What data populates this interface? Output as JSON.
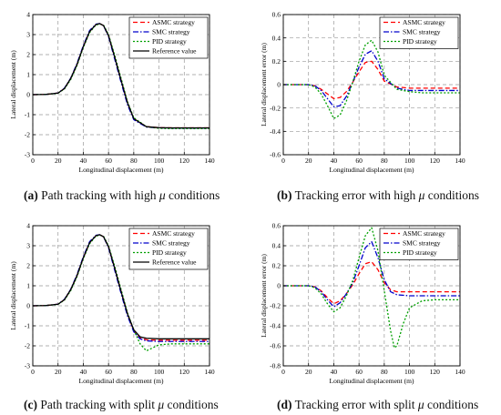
{
  "captions": [
    {
      "label": "(a)",
      "text_before": " Path tracking with high ",
      "mu": "μ",
      "text_after": " conditions"
    },
    {
      "label": "(b)",
      "text_before": " Tracking error with high ",
      "mu": "μ",
      "text_after": " conditions"
    },
    {
      "label": "(c)",
      "text_before": " Path tracking with split ",
      "mu": "μ",
      "text_after": " conditions"
    },
    {
      "label": "(d)",
      "text_before": " Tracking error with split ",
      "mu": "μ",
      "text_after": " conditions"
    }
  ],
  "chart_data": [
    {
      "type": "line",
      "title": "",
      "xlabel": "Longitudinal displacement (m)",
      "ylabel": "Lateral displacement (m)",
      "xlim": [
        0,
        140
      ],
      "ylim": [
        -3,
        4
      ],
      "xticks": [
        0,
        20,
        40,
        60,
        80,
        100,
        120,
        140
      ],
      "yticks": [
        -3,
        -2,
        -1,
        0,
        1,
        2,
        3,
        4
      ],
      "grid": true,
      "legend_position": "top-right",
      "series": [
        {
          "name": "ASMC strategy",
          "color": "#ff0000",
          "dash": "dashed",
          "x": [
            0,
            10,
            20,
            25,
            30,
            35,
            40,
            45,
            50,
            53,
            56,
            60,
            65,
            70,
            75,
            80,
            90,
            100,
            110,
            120,
            130,
            140
          ],
          "y": [
            0,
            0.01,
            0.08,
            0.3,
            0.8,
            1.5,
            2.4,
            3.15,
            3.5,
            3.55,
            3.45,
            2.95,
            1.85,
            0.7,
            -0.4,
            -1.2,
            -1.6,
            -1.65,
            -1.66,
            -1.66,
            -1.66,
            -1.66
          ]
        },
        {
          "name": "SMC strategy",
          "color": "#0000cc",
          "dash": "dashdot",
          "x": [
            0,
            10,
            20,
            25,
            30,
            35,
            40,
            45,
            50,
            53,
            56,
            60,
            65,
            70,
            75,
            80,
            90,
            100,
            110,
            120,
            130,
            140
          ],
          "y": [
            0,
            0.01,
            0.08,
            0.32,
            0.82,
            1.55,
            2.45,
            3.2,
            3.52,
            3.55,
            3.45,
            2.9,
            1.75,
            0.6,
            -0.5,
            -1.25,
            -1.62,
            -1.66,
            -1.67,
            -1.67,
            -1.67,
            -1.67
          ]
        },
        {
          "name": "PID strategy",
          "color": "#00a000",
          "dash": "dotted",
          "x": [
            0,
            10,
            20,
            25,
            30,
            35,
            40,
            45,
            50,
            53,
            56,
            60,
            65,
            70,
            75,
            80,
            90,
            100,
            110,
            120,
            130,
            140
          ],
          "y": [
            0,
            0.01,
            0.07,
            0.28,
            0.75,
            1.45,
            2.35,
            3.1,
            3.48,
            3.53,
            3.48,
            3.0,
            1.95,
            0.8,
            -0.35,
            -1.15,
            -1.6,
            -1.68,
            -1.7,
            -1.7,
            -1.7,
            -1.7
          ]
        },
        {
          "name": "Reference value",
          "color": "#000000",
          "dash": "solid",
          "x": [
            0,
            10,
            20,
            25,
            30,
            35,
            40,
            45,
            50,
            53,
            56,
            60,
            65,
            70,
            75,
            80,
            90,
            100,
            110,
            120,
            130,
            140
          ],
          "y": [
            0,
            0.01,
            0.08,
            0.3,
            0.8,
            1.5,
            2.4,
            3.15,
            3.5,
            3.55,
            3.45,
            2.95,
            1.85,
            0.7,
            -0.4,
            -1.2,
            -1.6,
            -1.65,
            -1.66,
            -1.66,
            -1.66,
            -1.66
          ]
        }
      ]
    },
    {
      "type": "line",
      "title": "",
      "xlabel": "Longitudinal displacement (m)",
      "ylabel": "Lateral displacement error (m)",
      "xlim": [
        0,
        140
      ],
      "ylim": [
        -0.6,
        0.6
      ],
      "xticks": [
        0,
        20,
        40,
        60,
        80,
        100,
        120,
        140
      ],
      "yticks": [
        -0.6,
        -0.4,
        -0.2,
        0,
        0.2,
        0.4,
        0.6
      ],
      "grid": true,
      "legend_position": "top-right",
      "series": [
        {
          "name": "ASMC strategy",
          "color": "#ff0000",
          "dash": "dashed",
          "x": [
            0,
            10,
            20,
            25,
            30,
            35,
            40,
            45,
            50,
            55,
            60,
            65,
            70,
            75,
            80,
            90,
            100,
            110,
            120,
            130,
            140
          ],
          "y": [
            0,
            0,
            0,
            -0.01,
            -0.04,
            -0.08,
            -0.12,
            -0.11,
            -0.06,
            0.02,
            0.11,
            0.19,
            0.2,
            0.13,
            0.03,
            -0.02,
            -0.03,
            -0.03,
            -0.03,
            -0.03,
            -0.03
          ]
        },
        {
          "name": "SMC strategy",
          "color": "#0000cc",
          "dash": "dashdot",
          "x": [
            0,
            10,
            20,
            25,
            30,
            35,
            40,
            45,
            50,
            55,
            60,
            65,
            70,
            75,
            80,
            90,
            100,
            110,
            120,
            130,
            140
          ],
          "y": [
            0,
            0,
            0,
            -0.01,
            -0.05,
            -0.12,
            -0.19,
            -0.18,
            -0.1,
            0.02,
            0.15,
            0.26,
            0.29,
            0.2,
            0.05,
            -0.03,
            -0.05,
            -0.05,
            -0.05,
            -0.05,
            -0.05
          ]
        },
        {
          "name": "PID strategy",
          "color": "#00a000",
          "dash": "dotted",
          "x": [
            0,
            10,
            20,
            25,
            30,
            35,
            40,
            45,
            50,
            55,
            60,
            65,
            70,
            75,
            80,
            90,
            100,
            110,
            120,
            130,
            140
          ],
          "y": [
            0,
            0,
            0,
            -0.02,
            -0.08,
            -0.18,
            -0.29,
            -0.26,
            -0.14,
            0.02,
            0.2,
            0.34,
            0.38,
            0.28,
            0.08,
            -0.04,
            -0.06,
            -0.07,
            -0.07,
            -0.07,
            -0.07
          ]
        }
      ]
    },
    {
      "type": "line",
      "title": "",
      "xlabel": "Longitudinal displacement (m)",
      "ylabel": "Lateral displacement (m)",
      "xlim": [
        0,
        140
      ],
      "ylim": [
        -3,
        4
      ],
      "xticks": [
        0,
        20,
        40,
        60,
        80,
        100,
        120,
        140
      ],
      "yticks": [
        -3,
        -2,
        -1,
        0,
        1,
        2,
        3,
        4
      ],
      "grid": true,
      "legend_position": "top-right",
      "series": [
        {
          "name": "ASMC strategy",
          "color": "#ff0000",
          "dash": "dashed",
          "x": [
            0,
            10,
            20,
            25,
            30,
            35,
            40,
            45,
            50,
            53,
            56,
            60,
            65,
            70,
            75,
            80,
            85,
            90,
            100,
            110,
            120,
            130,
            140
          ],
          "y": [
            0,
            0.01,
            0.08,
            0.3,
            0.8,
            1.5,
            2.4,
            3.15,
            3.5,
            3.55,
            3.45,
            2.95,
            1.85,
            0.7,
            -0.4,
            -1.25,
            -1.6,
            -1.7,
            -1.72,
            -1.72,
            -1.72,
            -1.72,
            -1.72
          ]
        },
        {
          "name": "SMC strategy",
          "color": "#0000cc",
          "dash": "dashdot",
          "x": [
            0,
            10,
            20,
            25,
            30,
            35,
            40,
            45,
            50,
            53,
            56,
            60,
            65,
            70,
            75,
            80,
            85,
            90,
            100,
            110,
            120,
            130,
            140
          ],
          "y": [
            0,
            0.01,
            0.08,
            0.32,
            0.82,
            1.55,
            2.45,
            3.2,
            3.52,
            3.55,
            3.45,
            2.9,
            1.75,
            0.6,
            -0.5,
            -1.3,
            -1.65,
            -1.75,
            -1.78,
            -1.78,
            -1.78,
            -1.78,
            -1.78
          ]
        },
        {
          "name": "PID strategy",
          "color": "#00a000",
          "dash": "dotted",
          "x": [
            0,
            10,
            20,
            25,
            30,
            35,
            40,
            45,
            50,
            53,
            56,
            60,
            65,
            70,
            75,
            80,
            85,
            90,
            95,
            100,
            110,
            120,
            130,
            140
          ],
          "y": [
            0,
            0.01,
            0.07,
            0.28,
            0.75,
            1.45,
            2.35,
            3.1,
            3.48,
            3.53,
            3.48,
            3.0,
            1.95,
            0.8,
            -0.35,
            -1.2,
            -1.9,
            -2.25,
            -2.1,
            -1.95,
            -1.9,
            -1.9,
            -1.9,
            -1.9
          ]
        },
        {
          "name": "Reference value",
          "color": "#000000",
          "dash": "solid",
          "x": [
            0,
            10,
            20,
            25,
            30,
            35,
            40,
            45,
            50,
            53,
            56,
            60,
            65,
            70,
            75,
            80,
            85,
            90,
            100,
            110,
            120,
            130,
            140
          ],
          "y": [
            0,
            0.01,
            0.08,
            0.3,
            0.8,
            1.5,
            2.4,
            3.15,
            3.5,
            3.55,
            3.45,
            2.95,
            1.85,
            0.7,
            -0.4,
            -1.2,
            -1.55,
            -1.62,
            -1.65,
            -1.65,
            -1.65,
            -1.65,
            -1.65
          ]
        }
      ]
    },
    {
      "type": "line",
      "title": "",
      "xlabel": "Longitudinal displacement (m)",
      "ylabel": "Lateral displacement error (m)",
      "xlim": [
        0,
        140
      ],
      "ylim": [
        -0.8,
        0.6
      ],
      "xticks": [
        0,
        20,
        40,
        60,
        80,
        100,
        120,
        140
      ],
      "yticks": [
        -0.8,
        -0.6,
        -0.4,
        -0.2,
        0,
        0.2,
        0.4,
        0.6
      ],
      "grid": true,
      "legend_position": "top-right",
      "series": [
        {
          "name": "ASMC strategy",
          "color": "#ff0000",
          "dash": "dashed",
          "x": [
            0,
            10,
            20,
            25,
            30,
            35,
            40,
            45,
            50,
            55,
            60,
            65,
            70,
            75,
            80,
            85,
            90,
            100,
            110,
            120,
            130,
            140
          ],
          "y": [
            0,
            0,
            0,
            -0.01,
            -0.05,
            -0.12,
            -0.18,
            -0.15,
            -0.08,
            0.01,
            0.12,
            0.22,
            0.24,
            0.16,
            0.03,
            -0.04,
            -0.06,
            -0.06,
            -0.06,
            -0.06,
            -0.06,
            -0.06
          ]
        },
        {
          "name": "SMC strategy",
          "color": "#0000cc",
          "dash": "dashdot",
          "x": [
            0,
            10,
            20,
            25,
            30,
            35,
            40,
            45,
            50,
            55,
            60,
            65,
            70,
            75,
            80,
            85,
            90,
            100,
            110,
            120,
            130,
            140
          ],
          "y": [
            0,
            0,
            0,
            -0.01,
            -0.06,
            -0.14,
            -0.21,
            -0.17,
            -0.08,
            0.03,
            0.2,
            0.38,
            0.44,
            0.28,
            0.06,
            -0.06,
            -0.09,
            -0.1,
            -0.1,
            -0.1,
            -0.1,
            -0.1
          ]
        },
        {
          "name": "PID strategy",
          "color": "#00a000",
          "dash": "dotted",
          "x": [
            0,
            10,
            20,
            25,
            30,
            35,
            40,
            45,
            50,
            55,
            60,
            65,
            70,
            75,
            80,
            85,
            88,
            90,
            95,
            100,
            110,
            120,
            130,
            140
          ],
          "y": [
            0,
            0,
            0,
            -0.02,
            -0.08,
            -0.18,
            -0.26,
            -0.22,
            -0.1,
            0.05,
            0.28,
            0.5,
            0.58,
            0.35,
            -0.05,
            -0.45,
            -0.62,
            -0.6,
            -0.38,
            -0.22,
            -0.15,
            -0.14,
            -0.14,
            -0.14
          ]
        }
      ]
    }
  ]
}
